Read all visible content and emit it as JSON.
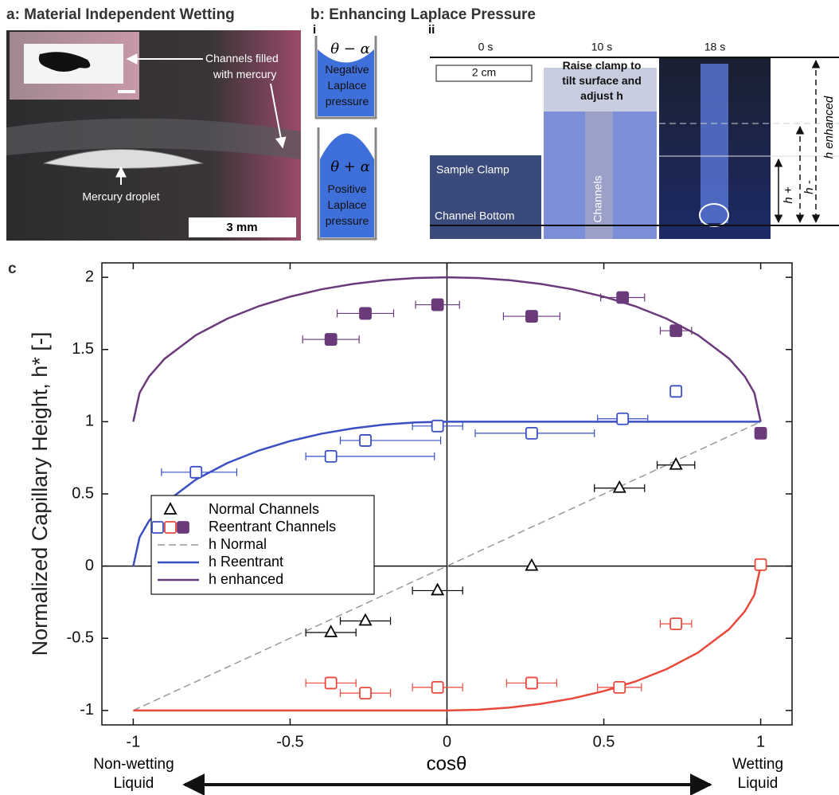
{
  "panel_a": {
    "title": "a: Material Independent Wetting",
    "channels_label": [
      "Channels filled",
      "with mercury"
    ],
    "droplet_label": "Mercury droplet",
    "scale": "3 mm"
  },
  "panel_b": {
    "title": "b: Enhancing Laplace Pressure",
    "sub_i": "i",
    "sub_ii": "ii",
    "negative": {
      "angle": "θ − α",
      "label": [
        "Negative",
        "Laplace",
        "pressure"
      ]
    },
    "positive": {
      "angle": "θ + α",
      "label": [
        "Positive",
        "Laplace",
        "pressure"
      ]
    },
    "times": [
      "0 s",
      "10 s",
      "18 s"
    ],
    "scale": "2 cm",
    "instruction": [
      "Raise clamp to",
      "tilt surface and",
      "adjust h"
    ],
    "sample_clamp": "Sample Clamp",
    "channel_bottom": "Channel Bottom",
    "channels": "Channels",
    "h_enhanced": "h enhanced",
    "h_minus": "h -",
    "h_plus": "h +"
  },
  "panel_c": {
    "label": "c"
  },
  "chart_data": {
    "type": "scatter",
    "ylabel": "Normalized Capillary Height, h* [-]",
    "xlabel": "cosθ",
    "left_note": [
      "Non-wetting",
      "Liquid"
    ],
    "right_note": [
      "Wetting",
      "Liquid"
    ],
    "xlim": [
      -1.1,
      1.1
    ],
    "ylim": [
      -1.1,
      2.1
    ],
    "xticks": [
      -1,
      -0.5,
      0,
      0.5,
      1
    ],
    "yticks": [
      -1,
      -0.5,
      0,
      0.5,
      1,
      1.5,
      2
    ],
    "series": [
      {
        "name": "Normal Channels",
        "color": "#000000",
        "marker": "triangle",
        "subsets": [
          {
            "color": "#000000",
            "filled": false,
            "x": [
              -0.37,
              -0.26,
              -0.03,
              0.27,
              0.55,
              0.73
            ],
            "values": [
              -0.46,
              -0.38,
              -0.17,
              0.0,
              0.54,
              0.7
            ],
            "xerr_minus": [
              0.08,
              0.08,
              0.08,
              0,
              0.08,
              0.06
            ],
            "xerr_plus": [
              0.08,
              0.08,
              0.08,
              0,
              0.08,
              0.06
            ]
          }
        ]
      },
      {
        "name": "Reentrant Channels",
        "color": "#3a4fc4",
        "marker": "square",
        "subsets": [
          {
            "color": "#3a4fc4",
            "filled": false,
            "x": [
              -0.8,
              -0.37,
              -0.26,
              -0.03,
              0.27,
              0.56,
              0.73
            ],
            "values": [
              0.65,
              0.76,
              0.87,
              0.97,
              0.92,
              1.02,
              1.21
            ],
            "xerr_minus": [
              0.11,
              0.08,
              0.08,
              0.08,
              0.18,
              0.08,
              0
            ],
            "xerr_plus": [
              0.13,
              0.33,
              0.24,
              0.08,
              0.2,
              0.08,
              0
            ]
          },
          {
            "color": "#e8493a",
            "filled": false,
            "x": [
              -0.37,
              -0.26,
              -0.03,
              0.27,
              0.55,
              0.73,
              1.0
            ],
            "values": [
              -0.81,
              -0.88,
              -0.84,
              -0.81,
              -0.84,
              -0.4,
              0.01
            ],
            "xerr_minus": [
              0.08,
              0.08,
              0.08,
              0.08,
              0.07,
              0.05,
              0
            ],
            "xerr_plus": [
              0.08,
              0.08,
              0.08,
              0.08,
              0.07,
              0.05,
              0
            ]
          },
          {
            "color": "#6b3a7a",
            "filled": true,
            "x": [
              -0.37,
              -0.26,
              -0.03,
              0.27,
              0.56,
              0.73,
              1.0
            ],
            "values": [
              1.57,
              1.75,
              1.81,
              1.73,
              1.86,
              1.63,
              0.92
            ],
            "xerr_minus": [
              0.09,
              0.09,
              0.07,
              0.09,
              0.07,
              0.05,
              0
            ],
            "xerr_plus": [
              0.09,
              0.09,
              0.07,
              0.09,
              0.07,
              0.05,
              0
            ]
          }
        ]
      }
    ],
    "curves": [
      {
        "name": "h Normal",
        "color": "#999999",
        "dashed": true,
        "x": [
          -1,
          1
        ],
        "values": [
          -1,
          1
        ]
      },
      {
        "name": "h Reentrant",
        "color": "#3a4fc4",
        "dashed": false,
        "x": [
          -1,
          -0.98,
          -0.95,
          -0.9,
          -0.8,
          -0.7,
          -0.6,
          -0.5,
          -0.4,
          -0.3,
          -0.2,
          -0.1,
          0,
          0.1,
          0.2,
          0.3,
          0.4,
          0.5,
          0.6,
          0.7,
          0.8,
          0.9,
          0.95,
          0.98,
          1
        ],
        "values": [
          0,
          0.199,
          0.312,
          0.436,
          0.6,
          0.714,
          0.8,
          0.866,
          0.917,
          0.954,
          0.98,
          0.995,
          1,
          1,
          1,
          1,
          1,
          1,
          1,
          1,
          1,
          1,
          1,
          1,
          1
        ]
      },
      {
        "name": "h Reentrant",
        "color": "#e8493a",
        "dashed": false,
        "legend": false,
        "x": [
          -1,
          -0.98,
          -0.95,
          -0.9,
          -0.8,
          -0.7,
          -0.6,
          -0.5,
          -0.4,
          -0.3,
          -0.2,
          -0.1,
          0,
          0.1,
          0.2,
          0.3,
          0.4,
          0.5,
          0.6,
          0.7,
          0.8,
          0.9,
          0.95,
          0.98,
          1
        ],
        "values": [
          -1,
          -1,
          -1,
          -1,
          -1,
          -1,
          -1,
          -1,
          -1,
          -1,
          -1,
          -1,
          -1,
          -0.995,
          -0.98,
          -0.954,
          -0.917,
          -0.866,
          -0.8,
          -0.714,
          -0.6,
          -0.436,
          -0.312,
          -0.199,
          0
        ]
      },
      {
        "name": "h enhanced",
        "color": "#6b3a7a",
        "dashed": false,
        "x": [
          -1,
          -0.98,
          -0.95,
          -0.9,
          -0.8,
          -0.7,
          -0.6,
          -0.5,
          -0.4,
          -0.3,
          -0.2,
          -0.1,
          0,
          0.1,
          0.2,
          0.3,
          0.4,
          0.5,
          0.6,
          0.7,
          0.8,
          0.9,
          0.95,
          0.98,
          1
        ],
        "values": [
          1,
          1.199,
          1.312,
          1.436,
          1.6,
          1.714,
          1.8,
          1.866,
          1.917,
          1.954,
          1.98,
          1.995,
          2,
          1.995,
          1.98,
          1.954,
          1.917,
          1.866,
          1.8,
          1.714,
          1.6,
          1.436,
          1.312,
          1.199,
          1
        ]
      }
    ]
  }
}
